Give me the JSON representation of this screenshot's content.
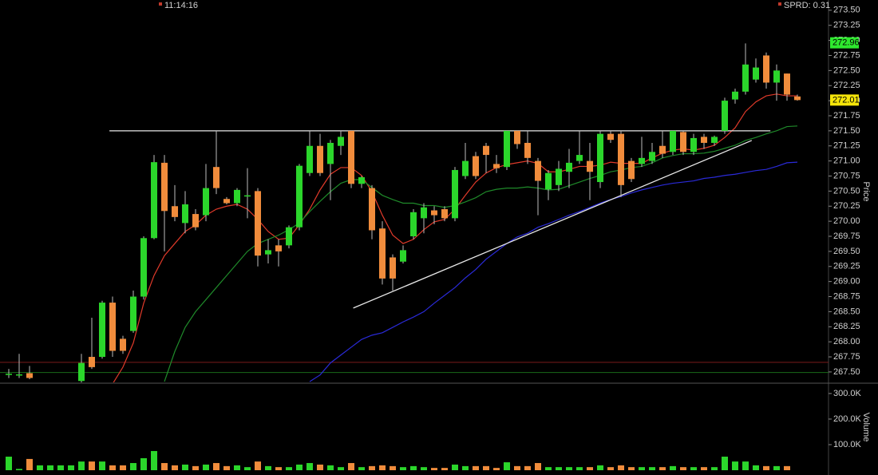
{
  "chart_data": {
    "type": "candlestick",
    "time": "11:14:16",
    "spread": "SPRD: 0.31",
    "y_label": "Price",
    "volume_label": "Volume",
    "up_color": "#2bd62b",
    "down_color": "#f08c3c",
    "ylim": [
      267.34,
      273.67
    ],
    "yticks": [
      {
        "value": 267.5,
        "label": "267.50"
      },
      267.75,
      {
        "value": 268,
        "label": "268.00"
      },
      268.25,
      {
        "value": 268.5,
        "label": "268.50"
      },
      268.75,
      {
        "value": 269,
        "label": "269.00"
      },
      269.25,
      {
        "value": 269.5,
        "label": "269.50"
      },
      269.75,
      {
        "value": 270,
        "label": "270.00"
      },
      270.25,
      {
        "value": 270.5,
        "label": "270.50"
      },
      270.75,
      {
        "value": 271,
        "label": "271.00"
      },
      271.25,
      {
        "value": 271.5,
        "label": "271.50"
      },
      271.75,
      {
        "value": 272,
        "label": "272.00"
      },
      272.25,
      {
        "value": 272.5,
        "label": "272.50"
      },
      272.75,
      {
        "value": 273,
        "label": "273.00"
      },
      273.25,
      {
        "value": 273.5,
        "label": "273.50"
      }
    ],
    "volume_ylim": [
      0,
      331000
    ],
    "volume_yticks": [
      {
        "value": 100000,
        "label": "100.0K"
      },
      {
        "value": 200000,
        "label": "200.0K"
      },
      {
        "value": 300000,
        "label": "300.0K"
      }
    ],
    "open": [
      267.45,
      267.45,
      267.48,
      null,
      null,
      null,
      null,
      267.35,
      267.75,
      267.75,
      268.65,
      268.05,
      268.18,
      268.75,
      269.72,
      270.97,
      270.25,
      269.97,
      270.12,
      270.1,
      270.9,
      270.37,
      270.3,
      270.42,
      270.5,
      269.45,
      269.6,
      269.6,
      269.9,
      270.8,
      271.25,
      270.95,
      271.25,
      271.5,
      270.62,
      270.55,
      269.88,
      269.4,
      269.33,
      269.75,
      270.05,
      270.18,
      270.2,
      270.05,
      270.75,
      271.08,
      271.25,
      270.95,
      270.9,
      271.5,
      271.3,
      271.0,
      270.53,
      270.6,
      270.82,
      271.0,
      271.0,
      270.65,
      271.45,
      271.45,
      271.0,
      270.95,
      271.0,
      271.25,
      271.15,
      271.48,
      271.15,
      271.4,
      271.3,
      271.5,
      272.02,
      272.15,
      272.35,
      272.75,
      272.3,
      272.45,
      272.07
    ],
    "high": [
      267.55,
      267.8,
      267.6,
      null,
      null,
      null,
      null,
      267.8,
      268.4,
      268.68,
      268.75,
      268.1,
      268.85,
      269.75,
      271.1,
      271.1,
      270.6,
      270.5,
      270.2,
      270.95,
      271.5,
      270.4,
      270.55,
      270.88,
      270.55,
      269.7,
      269.7,
      269.93,
      270.95,
      271.5,
      271.45,
      271.35,
      271.5,
      271.5,
      270.75,
      270.6,
      270.0,
      269.45,
      269.6,
      270.2,
      270.3,
      270.25,
      270.25,
      270.9,
      271.3,
      271.15,
      271.3,
      271.1,
      271.5,
      271.5,
      271.5,
      271.05,
      270.85,
      271.0,
      271.2,
      271.5,
      271.3,
      271.5,
      271.5,
      271.5,
      271.05,
      271.4,
      271.3,
      271.5,
      271.5,
      271.5,
      271.45,
      271.45,
      271.42,
      272.05,
      272.2,
      272.95,
      272.7,
      272.8,
      272.6,
      272.45,
      272.1
    ],
    "low": [
      267.4,
      267.4,
      267.38,
      null,
      null,
      null,
      null,
      267.3,
      267.55,
      267.72,
      267.75,
      267.8,
      268.15,
      268.7,
      269.7,
      269.5,
      270.0,
      269.8,
      269.85,
      270.0,
      270.45,
      270.28,
      270.25,
      270.05,
      269.25,
      269.3,
      269.25,
      269.55,
      269.85,
      270.75,
      270.75,
      270.35,
      271.1,
      270.55,
      270.55,
      269.7,
      268.95,
      268.85,
      269.3,
      269.7,
      269.8,
      269.95,
      270.0,
      270.0,
      270.7,
      270.7,
      270.8,
      270.8,
      270.85,
      271.2,
      270.95,
      270.1,
      270.35,
      270.5,
      270.55,
      270.95,
      270.35,
      270.55,
      271.3,
      270.4,
      270.65,
      270.9,
      270.95,
      271.05,
      271.1,
      271.1,
      271.1,
      271.2,
      271.25,
      271.45,
      271.95,
      272.1,
      272.3,
      272.2,
      272.0,
      272.0,
      272.0
    ],
    "close": [
      267.47,
      267.46,
      267.4,
      null,
      null,
      null,
      null,
      267.65,
      267.58,
      268.65,
      267.85,
      267.85,
      268.75,
      269.72,
      270.98,
      270.17,
      270.07,
      270.28,
      269.9,
      270.55,
      270.55,
      270.3,
      270.52,
      270.43,
      269.43,
      269.52,
      269.5,
      269.9,
      270.92,
      271.25,
      270.8,
      271.3,
      271.4,
      270.62,
      270.73,
      269.85,
      269.05,
      269.05,
      269.52,
      270.15,
      270.23,
      270.1,
      270.05,
      270.85,
      271.0,
      270.75,
      271.1,
      270.88,
      271.5,
      271.28,
      271.05,
      270.67,
      270.8,
      270.87,
      270.97,
      271.1,
      270.82,
      271.45,
      271.35,
      270.6,
      270.7,
      271.05,
      271.15,
      271.12,
      271.5,
      271.15,
      271.38,
      271.3,
      271.4,
      272.0,
      272.15,
      272.6,
      272.55,
      272.3,
      272.5,
      272.1,
      272.01
    ],
    "volume": [
      53000,
      5000,
      44000,
      19000,
      19000,
      19000,
      19000,
      34000,
      34000,
      34000,
      19000,
      19000,
      28000,
      47000,
      75000,
      28000,
      19000,
      22000,
      16000,
      22000,
      28000,
      16000,
      19000,
      12000,
      34000,
      16000,
      12000,
      12000,
      22000,
      28000,
      22000,
      19000,
      12000,
      28000,
      12000,
      16000,
      19000,
      16000,
      12000,
      16000,
      12000,
      9000,
      9000,
      22000,
      16000,
      16000,
      16000,
      9000,
      31000,
      16000,
      16000,
      28000,
      12000,
      12000,
      12000,
      12000,
      12000,
      19000,
      12000,
      19000,
      12000,
      12000,
      12000,
      12000,
      16000,
      12000,
      12000,
      12000,
      12000,
      53000,
      34000,
      34000,
      19000,
      16000,
      16000,
      16000,
      null
    ],
    "averages": [
      {
        "color": "#e03a2a",
        "values": [
          null,
          null,
          null,
          null,
          null,
          null,
          null,
          null,
          null,
          null,
          267.3,
          267.58,
          267.98,
          268.64,
          269.1,
          269.43,
          269.63,
          269.83,
          269.94,
          270.1,
          270.2,
          270.25,
          270.28,
          270.2,
          270.03,
          269.83,
          269.7,
          269.72,
          269.94,
          270.2,
          270.52,
          270.78,
          270.89,
          270.89,
          270.76,
          270.49,
          270.1,
          269.77,
          269.63,
          269.7,
          269.86,
          269.99,
          270.03,
          270.2,
          270.43,
          270.65,
          270.8,
          270.89,
          270.94,
          270.97,
          271.0,
          270.96,
          270.82,
          270.82,
          270.86,
          270.91,
          270.91,
          270.93,
          270.98,
          270.96,
          270.96,
          270.96,
          271.05,
          271.13,
          271.18,
          271.2,
          271.18,
          271.21,
          271.26,
          271.39,
          271.55,
          271.82,
          271.98,
          272.08,
          272.11,
          272.08,
          272.08
        ]
      },
      {
        "color": "#1f8a2a",
        "values": [
          null,
          null,
          null,
          null,
          null,
          null,
          null,
          null,
          null,
          null,
          null,
          null,
          null,
          null,
          null,
          267.34,
          267.84,
          268.24,
          268.5,
          268.7,
          268.9,
          269.1,
          269.3,
          269.5,
          269.63,
          269.7,
          269.77,
          269.86,
          269.97,
          270.16,
          270.33,
          270.49,
          270.63,
          270.69,
          270.69,
          270.56,
          270.43,
          270.36,
          270.3,
          270.3,
          270.26,
          270.26,
          270.23,
          270.26,
          270.32,
          270.39,
          270.49,
          270.53,
          270.55,
          270.55,
          270.57,
          270.55,
          270.52,
          270.53,
          270.59,
          270.65,
          270.71,
          270.76,
          270.82,
          270.85,
          270.89,
          270.91,
          270.97,
          271.05,
          271.09,
          271.12,
          271.12,
          271.13,
          271.16,
          271.21,
          271.26,
          271.34,
          271.39,
          271.45,
          271.5,
          271.57,
          271.58
        ]
      },
      {
        "color": "#2a2ad8",
        "values": [
          null,
          null,
          null,
          null,
          null,
          null,
          null,
          null,
          null,
          null,
          null,
          null,
          null,
          null,
          null,
          null,
          null,
          null,
          null,
          null,
          null,
          null,
          null,
          null,
          null,
          null,
          null,
          null,
          null,
          267.34,
          267.45,
          267.65,
          267.78,
          267.91,
          268.04,
          268.11,
          268.15,
          268.24,
          268.33,
          268.41,
          268.5,
          268.64,
          268.77,
          268.9,
          269.06,
          269.2,
          269.37,
          269.5,
          269.63,
          269.74,
          269.8,
          269.9,
          269.96,
          270.03,
          270.1,
          270.16,
          270.23,
          270.3,
          270.36,
          270.41,
          270.47,
          270.52,
          270.56,
          270.6,
          270.63,
          270.65,
          270.67,
          270.71,
          270.73,
          270.76,
          270.78,
          270.81,
          270.84,
          270.86,
          270.91,
          270.97,
          270.98
        ]
      }
    ],
    "levels": [
      {
        "value": 267.66,
        "color": "#7a1a1a"
      },
      {
        "value": 267.49,
        "color": "#1a6a1a"
      }
    ],
    "trendlines": [
      {
        "x": [
          9.7,
          73.4
        ],
        "y": [
          271.5,
          271.5
        ],
        "color": "#e8e8e8"
      },
      {
        "x": [
          33.2,
          71.6
        ],
        "y": [
          268.56,
          271.34
        ],
        "color": "#e8e8e8"
      }
    ],
    "price_markers": [
      {
        "value": 272.96,
        "color": "#2ee82e"
      },
      {
        "value": 272.01,
        "color": "#f5e50a"
      }
    ]
  }
}
